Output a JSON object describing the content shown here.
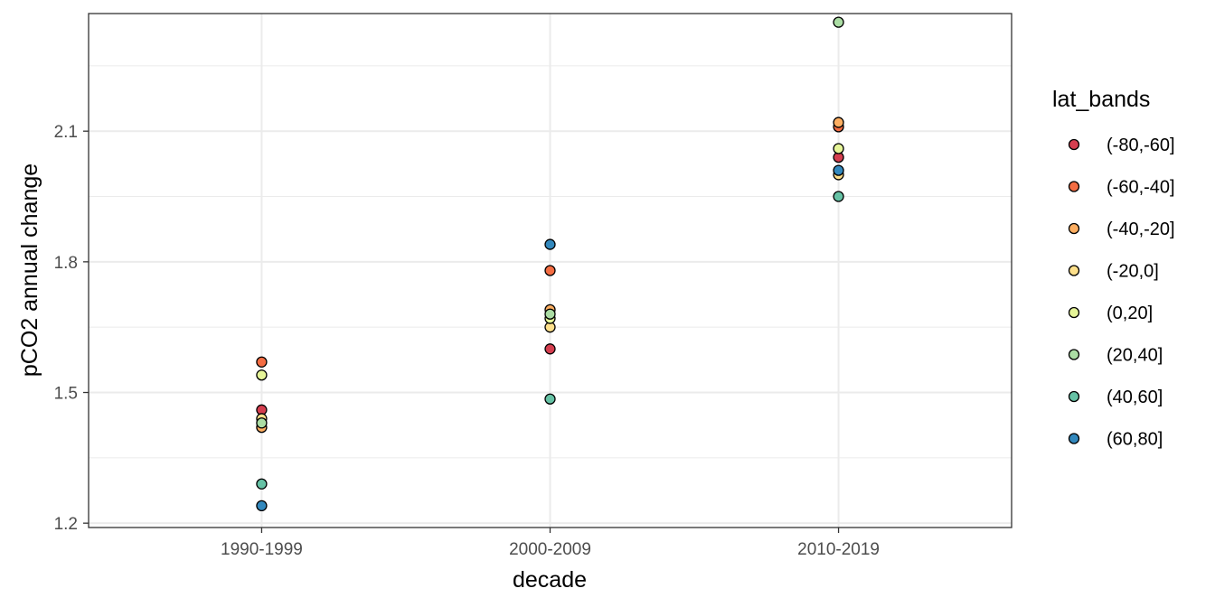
{
  "chart_data": {
    "type": "scatter",
    "xlabel": "decade",
    "ylabel": "pCO2 annual change",
    "categories": [
      "1990-1999",
      "2000-2009",
      "2010-2019"
    ],
    "y_ticks": [
      1.2,
      1.5,
      1.8,
      2.1
    ],
    "y_tick_labels": [
      "1.2",
      "1.5",
      "1.8",
      "2.1"
    ],
    "ylim": [
      1.19,
      2.37
    ],
    "grid": true,
    "legend_title": "lat_bands",
    "legend_position": "right",
    "series": [
      {
        "name": "(-80,-60]",
        "color": "#d53e4f",
        "values": [
          1.46,
          1.6,
          2.04
        ]
      },
      {
        "name": "(-60,-40]",
        "color": "#f46d43",
        "values": [
          1.57,
          1.78,
          2.11
        ]
      },
      {
        "name": "(-40,-20]",
        "color": "#fdae61",
        "values": [
          1.42,
          1.69,
          2.12
        ]
      },
      {
        "name": "(-20,0]",
        "color": "#fee08b",
        "values": [
          1.44,
          1.65,
          2.0
        ]
      },
      {
        "name": "(0,20]",
        "color": "#e6f598",
        "values": [
          1.54,
          1.67,
          2.06
        ]
      },
      {
        "name": "(20,40]",
        "color": "#abdda4",
        "values": [
          1.43,
          1.68,
          2.35
        ]
      },
      {
        "name": "(40,60]",
        "color": "#66c2a5",
        "values": [
          1.29,
          1.485,
          1.95
        ]
      },
      {
        "name": "(60,80]",
        "color": "#3288bd",
        "values": [
          1.24,
          1.84,
          2.01
        ]
      }
    ]
  }
}
